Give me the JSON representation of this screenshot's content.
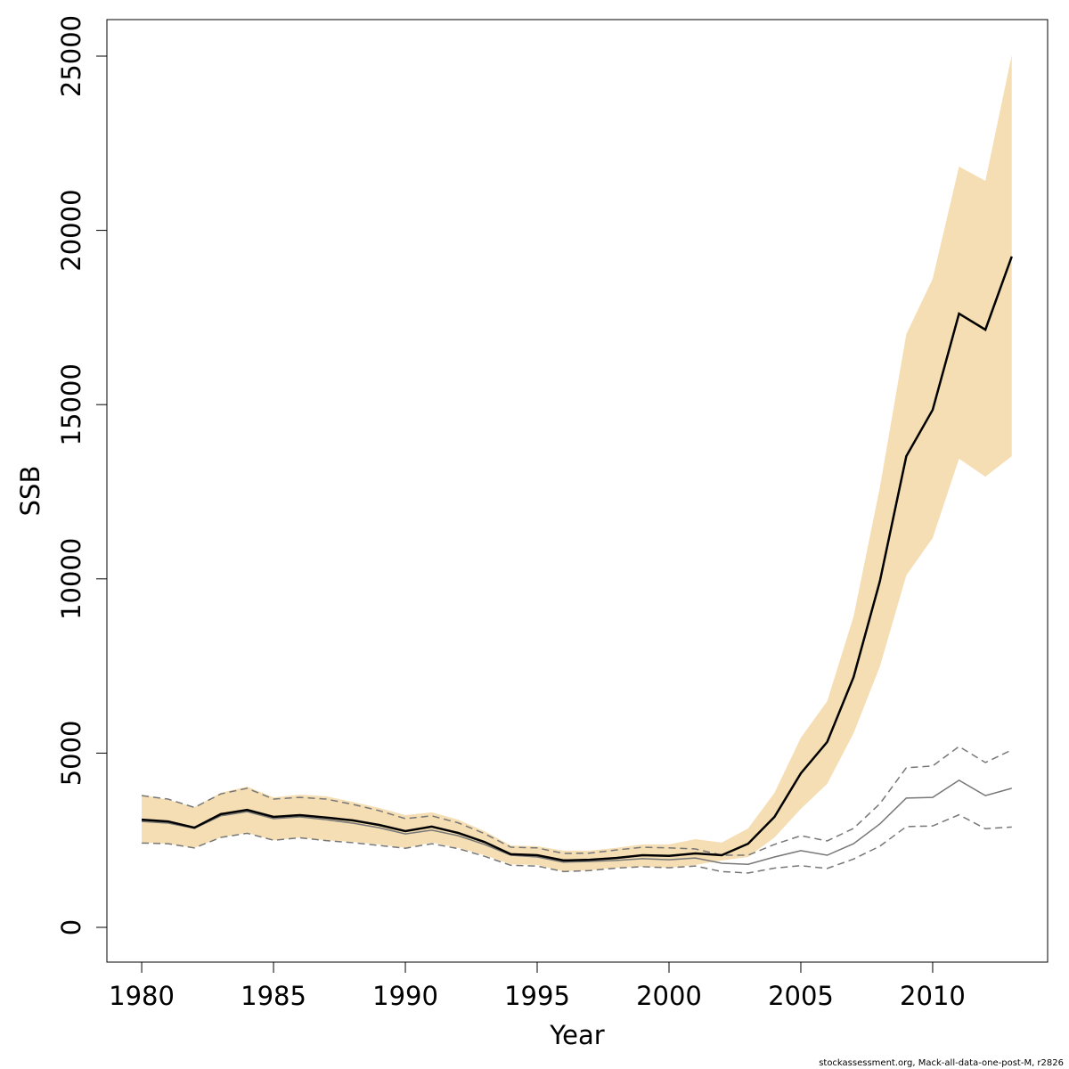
{
  "chart_data": {
    "type": "line",
    "xlabel": "Year",
    "ylabel": "SSB",
    "footnote": "stockassessment.org, Mack-all-data-one-post-M, r2826",
    "x": [
      1980,
      1981,
      1982,
      1983,
      1984,
      1985,
      1986,
      1987,
      1988,
      1989,
      1990,
      1991,
      1992,
      1993,
      1994,
      1995,
      1996,
      1997,
      1998,
      1999,
      2000,
      2001,
      2002,
      2003,
      2004,
      2005,
      2006,
      2007,
      2008,
      2009,
      2010,
      2011,
      2012,
      2013
    ],
    "xlim": [
      1978.68,
      2014.36
    ],
    "xticks": [
      1980,
      1985,
      1990,
      1995,
      2000,
      2005,
      2010
    ],
    "ylim": [
      -997,
      26048
    ],
    "yticks": [
      0,
      5000,
      10000,
      15000,
      20000,
      25000
    ],
    "band": {
      "color": "#f5deb3",
      "lower": [
        2430,
        2400,
        2280,
        2580,
        2710,
        2500,
        2580,
        2500,
        2450,
        2380,
        2280,
        2430,
        2280,
        2070,
        1810,
        1790,
        1610,
        1640,
        1710,
        1740,
        1710,
        1790,
        1920,
        2020,
        2580,
        3400,
        4120,
        5570,
        7490,
        10100,
        11170,
        13450,
        12930,
        13520
      ],
      "upper": [
        3810,
        3660,
        3450,
        3860,
        4040,
        3730,
        3810,
        3760,
        3600,
        3430,
        3220,
        3300,
        3090,
        2760,
        2350,
        2330,
        2200,
        2200,
        2280,
        2380,
        2380,
        2530,
        2430,
        2840,
        3860,
        5440,
        6490,
        8920,
        12630,
        17020,
        18610,
        21830,
        21420,
        25030
      ]
    },
    "series": [
      {
        "color": "#777777",
        "style": "dashed",
        "values": [
          3780,
          3680,
          3440,
          3830,
          3990,
          3680,
          3730,
          3680,
          3530,
          3350,
          3120,
          3200,
          3000,
          2690,
          2300,
          2280,
          2120,
          2130,
          2220,
          2300,
          2280,
          2250,
          2070,
          2070,
          2380,
          2630,
          2480,
          2840,
          3550,
          4580,
          4630,
          5190,
          4730,
          5090
        ]
      },
      {
        "color": "#777777",
        "style": "dashed",
        "values": [
          2420,
          2400,
          2280,
          2580,
          2700,
          2500,
          2570,
          2490,
          2430,
          2350,
          2270,
          2400,
          2260,
          2040,
          1780,
          1760,
          1600,
          1630,
          1700,
          1740,
          1710,
          1760,
          1600,
          1560,
          1700,
          1770,
          1690,
          1960,
          2330,
          2890,
          2910,
          3230,
          2830,
          2880
        ]
      },
      {
        "color": "#777777",
        "style": "thin",
        "values": [
          3040,
          2990,
          2840,
          3200,
          3320,
          3120,
          3170,
          3090,
          2990,
          2860,
          2680,
          2790,
          2630,
          2380,
          2070,
          2020,
          1870,
          1890,
          1920,
          1970,
          1940,
          1990,
          1840,
          1810,
          2020,
          2200,
          2070,
          2400,
          2970,
          3710,
          3730,
          4220,
          3780,
          3990
        ]
      },
      {
        "color": "#000000",
        "style": "thick",
        "values": [
          3090,
          3040,
          2860,
          3250,
          3370,
          3170,
          3220,
          3150,
          3070,
          2940,
          2760,
          2890,
          2710,
          2450,
          2100,
          2070,
          1920,
          1940,
          1990,
          2070,
          2050,
          2120,
          2070,
          2400,
          3170,
          4420,
          5320,
          7180,
          9940,
          13520,
          14850,
          17610,
          17150,
          19250
        ]
      }
    ]
  }
}
